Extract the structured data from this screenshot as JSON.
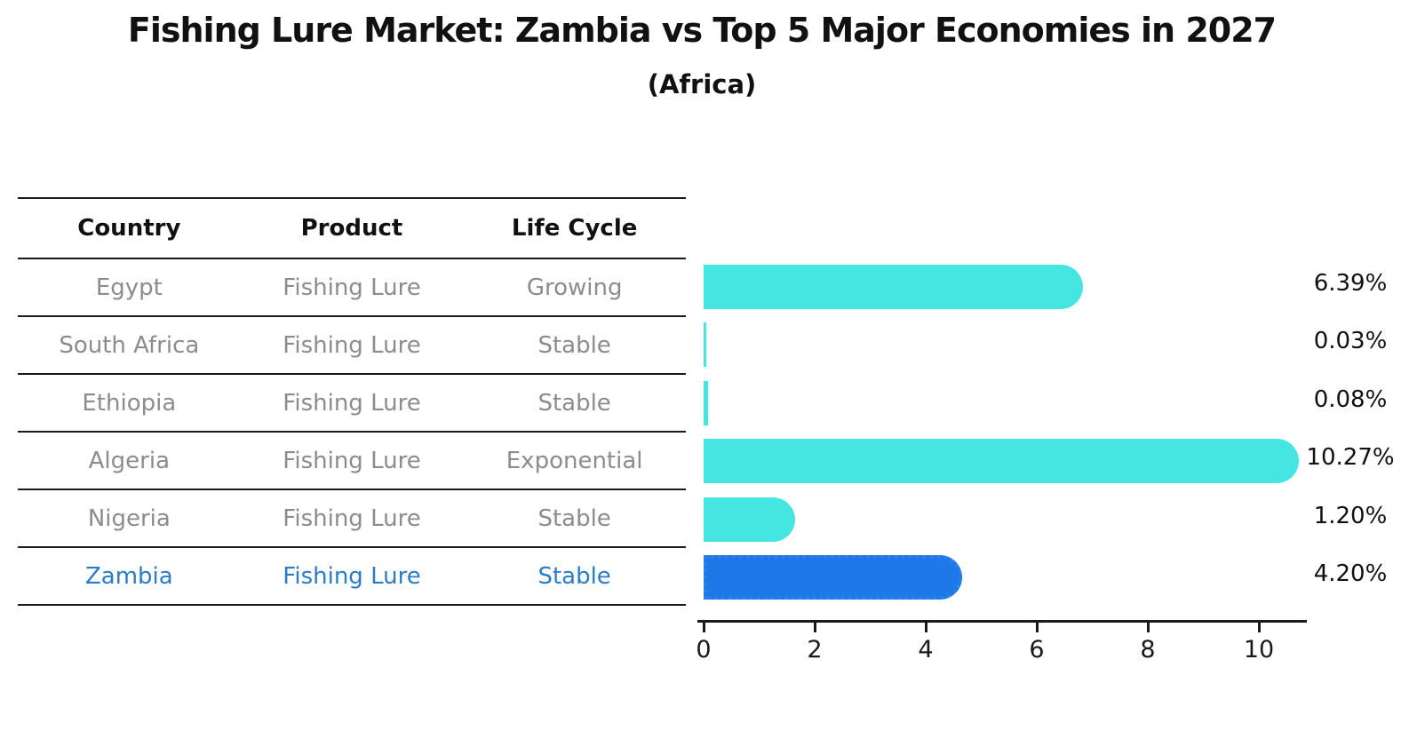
{
  "title": "Fishing Lure Market: Zambia vs Top 5 Major Economies in 2027",
  "subtitle": "(Africa)",
  "table": {
    "headers": [
      "Country",
      "Product",
      "Life Cycle"
    ],
    "rows": [
      {
        "country": "Egypt",
        "product": "Fishing Lure",
        "life_cycle": "Growing",
        "highlighted": false
      },
      {
        "country": "South Africa",
        "product": "Fishing Lure",
        "life_cycle": "Stable",
        "highlighted": false
      },
      {
        "country": "Ethiopia",
        "product": "Fishing Lure",
        "life_cycle": "Stable",
        "highlighted": false
      },
      {
        "country": "Algeria",
        "product": "Fishing Lure",
        "life_cycle": "Exponential",
        "highlighted": false
      },
      {
        "country": "Nigeria",
        "product": "Fishing Lure",
        "life_cycle": "Stable",
        "highlighted": false
      },
      {
        "country": "Zambia",
        "product": "Fishing Lure",
        "life_cycle": "Stable",
        "highlighted": true
      }
    ]
  },
  "chart_data": {
    "type": "bar",
    "orientation": "horizontal",
    "title": "Fishing Lure Market: Zambia vs Top 5 Major Economies in 2027",
    "subtitle": "(Africa)",
    "categories": [
      "Egypt",
      "South Africa",
      "Ethiopia",
      "Algeria",
      "Nigeria",
      "Zambia"
    ],
    "values": [
      6.39,
      0.03,
      0.08,
      10.27,
      1.2,
      4.2
    ],
    "data_labels": [
      "6.39%",
      "0.03%",
      "0.08%",
      "10.27%",
      "1.20%",
      "4.20%"
    ],
    "xlim": [
      0,
      10.8
    ],
    "xticks": [
      0,
      2,
      4,
      6,
      8,
      10
    ],
    "grid": false,
    "legend": false,
    "highlight_index": 5
  },
  "colors": {
    "bar": "#45E6E1",
    "highlight_bar": "#1E78E8",
    "highlight_dot_edge": "#2B82EA",
    "highlight_text": "#2B7BC9",
    "table_text": "#8C8C8C",
    "header_text": "#111111",
    "line": "#1A1A1A"
  }
}
